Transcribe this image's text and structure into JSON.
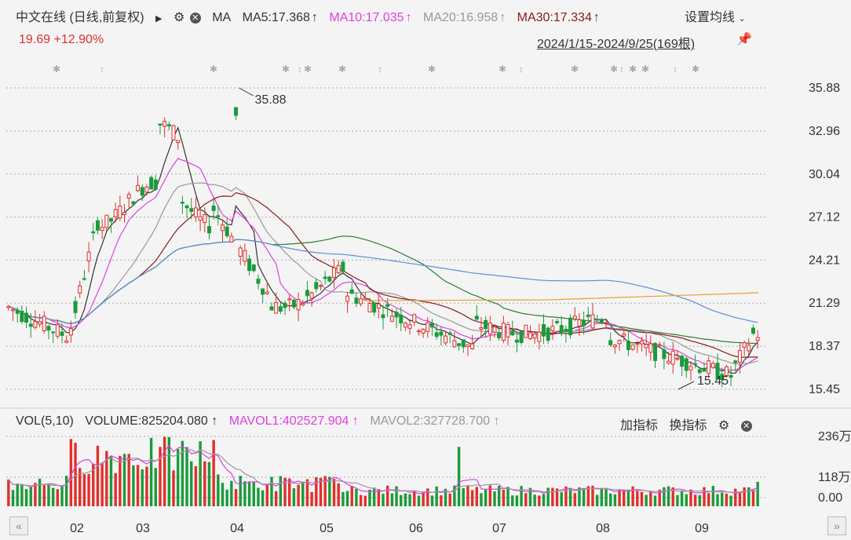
{
  "header": {
    "title": "中文在线 (日线,前复权)",
    "ma_label": "MA",
    "ma5": "MA5:17.368",
    "ma10": "MA10:17.035",
    "ma20": "MA20:16.958",
    "ma30": "MA30:17.334",
    "settings": "设置均线",
    "price_now": "19.69",
    "change_pct": "+12.90%",
    "range": "2024/1/15-2024/9/25(169根)"
  },
  "volume_header": {
    "vol": "VOL(5,10)",
    "volume": "VOLUME:825204.080",
    "mavol1": "MAVOL1:402527.904",
    "mavol2": "MAVOL2:327728.700",
    "add_indicator": "加指标",
    "switch_indicator": "换指标"
  },
  "chart_data": {
    "type": "candlestick",
    "price_axis_ticks": [
      "35.88",
      "32.96",
      "30.04",
      "27.12",
      "24.21",
      "21.29",
      "18.37",
      "15.45"
    ],
    "price_range": [
      15.45,
      35.88
    ],
    "volume_axis_ticks": [
      "236万",
      "118万",
      "0.00"
    ],
    "x_ticks": [
      "02",
      "03",
      "04",
      "05",
      "06",
      "07",
      "08",
      "09"
    ],
    "annotations": [
      {
        "label": "35.88",
        "value": 35.88
      },
      {
        "label": "15.45",
        "value": 15.45
      }
    ],
    "colors": {
      "up": "#e0302a",
      "down": "#1a9a3a",
      "ma5": "#333333",
      "ma10": "#e040e0",
      "ma20": "#999999",
      "ma30": "#8b1a1a",
      "ma60": "#2e7d32",
      "ma120": "#5b8fd6",
      "ma250": "#e8a030"
    }
  }
}
